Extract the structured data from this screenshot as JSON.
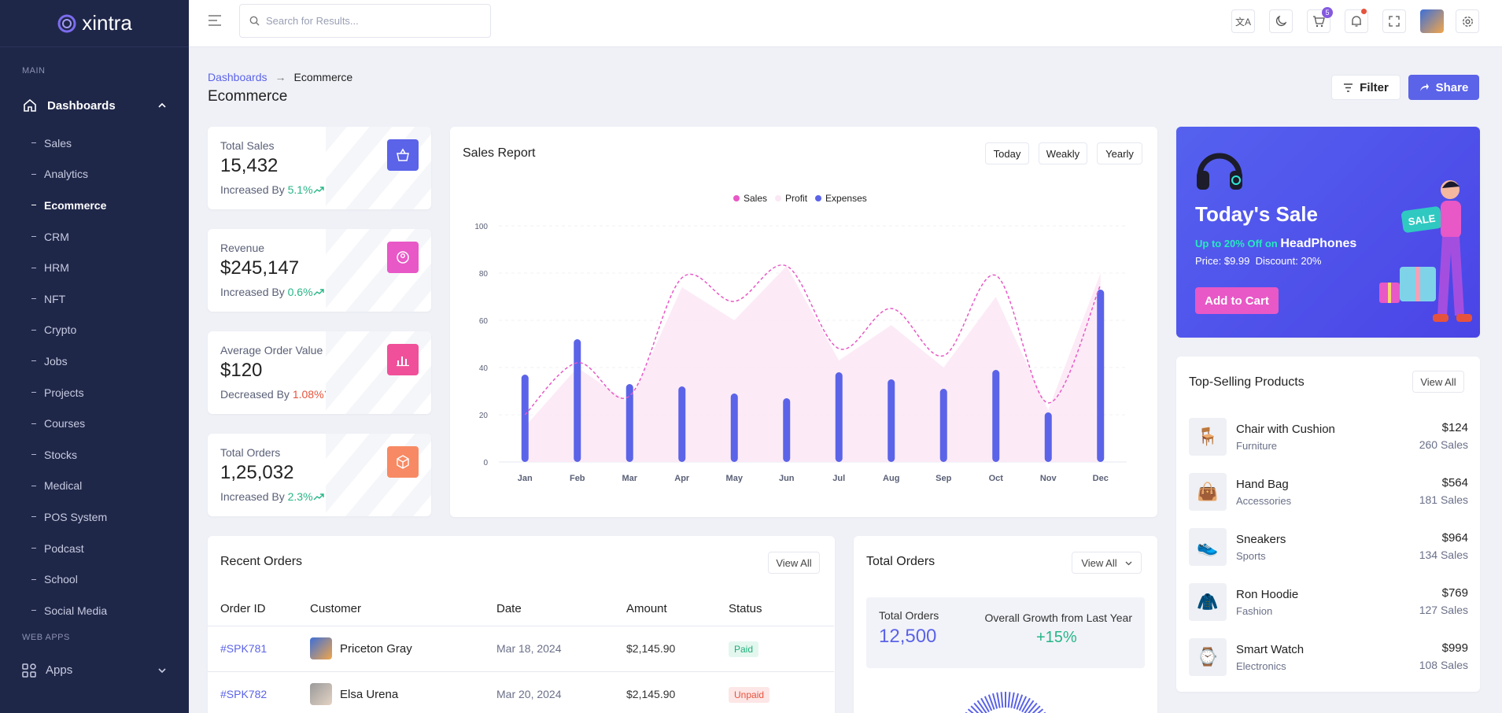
{
  "app": {
    "name": "xintra"
  },
  "sidebar": {
    "main_label": "MAIN",
    "dashboards_label": "Dashboards",
    "items": [
      "Sales",
      "Analytics",
      "Ecommerce",
      "CRM",
      "HRM",
      "NFT",
      "Crypto",
      "Jobs",
      "Projects",
      "Courses",
      "Stocks",
      "Medical",
      "POS System",
      "Podcast",
      "School",
      "Social Media"
    ],
    "active_item": "Ecommerce",
    "webapps_label": "WEB APPS",
    "apps_label": "Apps"
  },
  "topbar": {
    "search_placeholder": "Search for Results...",
    "cart_count": "5"
  },
  "breadcrumb": {
    "parent": "Dashboards",
    "current": "Ecommerce"
  },
  "page": {
    "title": "Ecommerce",
    "filter_label": "Filter",
    "share_label": "Share"
  },
  "stats": [
    {
      "title": "Total Sales",
      "value": "15,432",
      "prefix": "Increased By",
      "change": "5.1%",
      "dir": "up",
      "color": "#5b63e8"
    },
    {
      "title": "Revenue",
      "value": "$245,147",
      "prefix": "Increased By",
      "change": "0.6%",
      "dir": "up",
      "color": "#e858c6"
    },
    {
      "title": "Average Order Value",
      "value": "$120",
      "prefix": "Decreased By",
      "change": "1.08%",
      "dir": "down",
      "color": "#f0509a"
    },
    {
      "title": "Total Orders",
      "value": "1,25,032",
      "prefix": "Increased By",
      "change": "2.3%",
      "dir": "up",
      "color": "#f78a64"
    }
  ],
  "sales_report": {
    "title": "Sales Report",
    "periods": [
      "Today",
      "Weakly",
      "Yearly"
    ]
  },
  "chart_data": {
    "type": "bar",
    "categories": [
      "Jan",
      "Feb",
      "Mar",
      "Apr",
      "May",
      "Jun",
      "Jul",
      "Aug",
      "Sep",
      "Oct",
      "Nov",
      "Dec"
    ],
    "ylim": [
      0,
      100
    ],
    "yticks": [
      0,
      20,
      40,
      60,
      80,
      100
    ],
    "series": [
      {
        "name": "Sales",
        "type": "line",
        "color": "#e858c6",
        "values": [
          20,
          42,
          28,
          78,
          68,
          83,
          48,
          65,
          45,
          79,
          25,
          75
        ]
      },
      {
        "name": "Profit",
        "type": "area",
        "color": "#fbe8f4",
        "values": [
          15,
          40,
          25,
          74,
          60,
          83,
          43,
          58,
          40,
          70,
          22,
          80
        ]
      },
      {
        "name": "Expenses",
        "type": "bar",
        "color": "#5b63e8",
        "values": [
          37,
          52,
          33,
          32,
          29,
          27,
          38,
          35,
          31,
          39,
          21,
          73
        ]
      }
    ],
    "legend": "top-center"
  },
  "promo": {
    "title": "Today's Sale",
    "offer": "Up to 20% Off on",
    "product": "HeadPhones",
    "price": "Price: $9.99",
    "discount": "Discount: 20%",
    "button": "Add to Cart",
    "tag": "SALE"
  },
  "top_products": {
    "title": "Top-Selling Products",
    "view_all": "View All",
    "items": [
      {
        "name": "Chair with Cushion",
        "category": "Furniture",
        "price": "$124",
        "sales": "260 Sales",
        "icon": "🪑"
      },
      {
        "name": "Hand Bag",
        "category": "Accessories",
        "price": "$564",
        "sales": "181 Sales",
        "icon": "👜"
      },
      {
        "name": "Sneakers",
        "category": "Sports",
        "price": "$964",
        "sales": "134 Sales",
        "icon": "👟"
      },
      {
        "name": "Ron Hoodie",
        "category": "Fashion",
        "price": "$769",
        "sales": "127 Sales",
        "icon": "🧥"
      },
      {
        "name": "Smart Watch",
        "category": "Electronics",
        "price": "$999",
        "sales": "108 Sales",
        "icon": "⌚"
      }
    ]
  },
  "recent_orders": {
    "title": "Recent Orders",
    "view_all": "View All",
    "headers": [
      "Order ID",
      "Customer",
      "Date",
      "Amount",
      "Status"
    ],
    "rows": [
      {
        "id": "#SPK781",
        "customer": "Priceton Gray",
        "date": "Mar 18, 2024",
        "amount": "$2,145.90",
        "status": "Paid"
      },
      {
        "id": "#SPK782",
        "customer": "Elsa Urena",
        "date": "Mar 20, 2024",
        "amount": "$2,145.90",
        "status": "Unpaid"
      }
    ]
  },
  "total_orders": {
    "title": "Total Orders",
    "view_all": "View All",
    "label": "Total Orders",
    "value": "12,500",
    "growth_label": "Overall Growth from Last Year",
    "growth": "+15%"
  }
}
